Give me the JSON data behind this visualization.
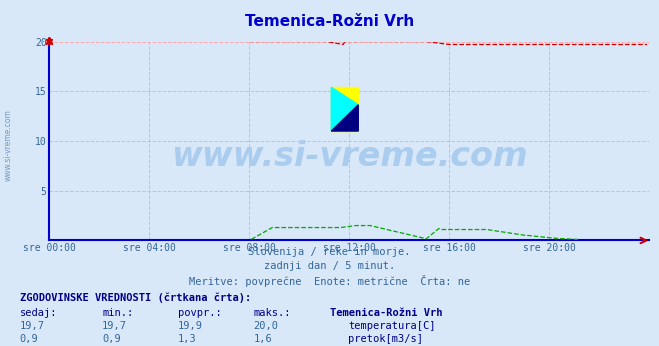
{
  "title": "Temenica-Rožni Vrh",
  "title_color": "#0000cc",
  "background_color": "#d8e8f8",
  "plot_bg_color": "#d8e8f8",
  "xlim": [
    0,
    288
  ],
  "ylim": [
    0,
    20
  ],
  "yticks": [
    0,
    5,
    10,
    15,
    20
  ],
  "xtick_labels": [
    "sre 00:00",
    "sre 04:00",
    "sre 08:00",
    "sre 12:00",
    "sre 16:00",
    "sre 20:00"
  ],
  "xtick_positions": [
    0,
    48,
    96,
    144,
    192,
    240
  ],
  "grid_color": "#ffaaaa",
  "axis_color": "#0000cc",
  "watermark_text": "www.si-vreme.com",
  "watermark_color": "#aaccee",
  "subtitle1": "Slovenija / reke in morje.",
  "subtitle2": "zadnji dan / 5 minut.",
  "subtitle3": "Meritve: povprečne  Enote: metrične  Črta: ne",
  "subtitle_color": "#336699",
  "footer_header": "ZGODOVINSKE VREDNOSTI (črtkana črta):",
  "footer_cols": [
    "sedaj:",
    "min.:",
    "povpr.:",
    "maks.:",
    "Temenica-Rožni Vrh"
  ],
  "temp_row": [
    "19,7",
    "19,7",
    "19,9",
    "20,0",
    "temperatura[C]"
  ],
  "flow_row": [
    "0,9",
    "0,9",
    "1,3",
    "1,6",
    "pretok[m3/s]"
  ],
  "temp_color": "#cc0000",
  "flow_color": "#00aa00",
  "flow_scale": 12.5,
  "n_points": 288
}
